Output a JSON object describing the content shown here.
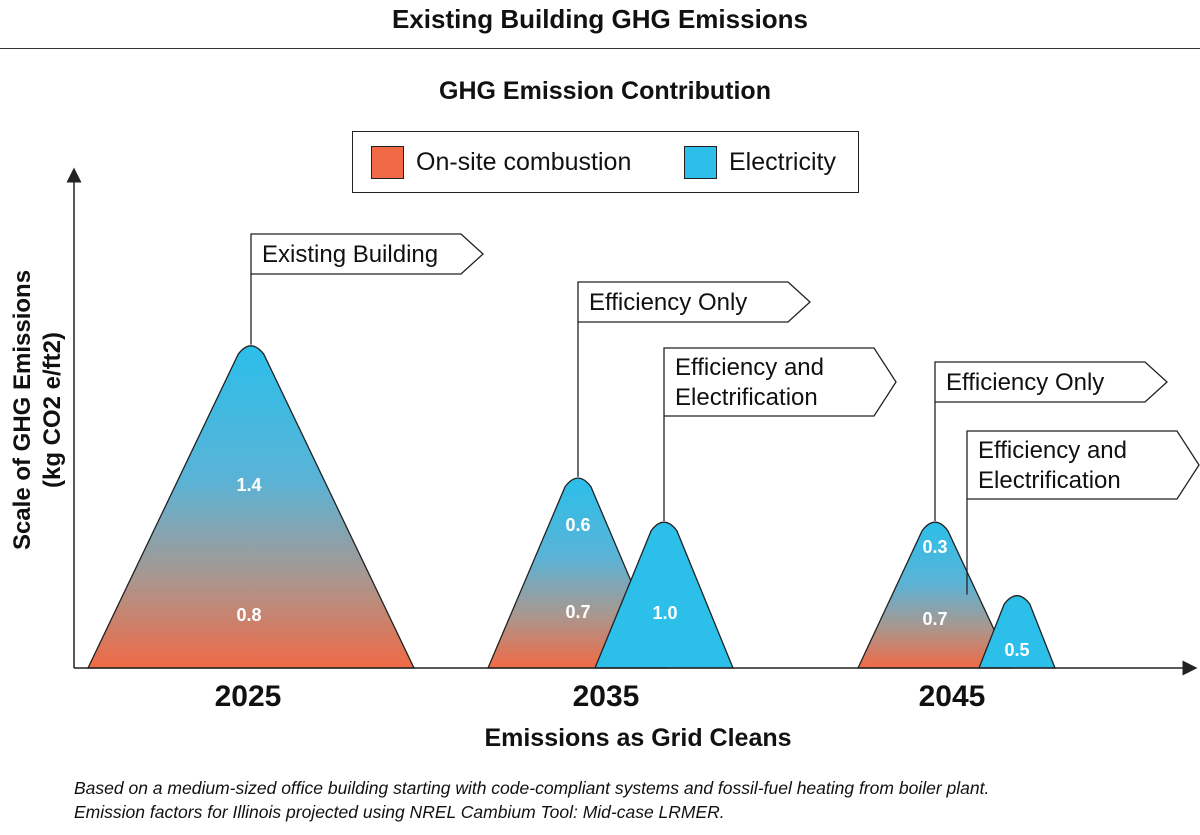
{
  "title": "Existing Building GHG Emissions",
  "chart_data": {
    "type": "area",
    "title": "GHG Emission Contribution",
    "xlabel": "Emissions as Grid Cleans",
    "ylabel_lines": [
      "Scale of GHG Emissions",
      "(kg CO2 e/ft2)"
    ],
    "legend": {
      "placement": "top-center",
      "items": [
        {
          "name": "On-site combustion",
          "color": "#F06A45"
        },
        {
          "name": "Electricity",
          "color": "#2BBFEA"
        }
      ]
    },
    "categories": [
      "2025",
      "2035",
      "2045"
    ],
    "scenarios": [
      {
        "year": "2025",
        "callout": [
          "Existing Building"
        ],
        "electricity": 1.4,
        "onsite_combustion": 0.8,
        "style": "gradient"
      },
      {
        "year": "2035",
        "callout": [
          "Efficiency Only"
        ],
        "electricity": 0.6,
        "onsite_combustion": 0.7,
        "style": "gradient"
      },
      {
        "year": "2035",
        "callout": [
          "Efficiency and",
          "Electrification"
        ],
        "electricity": 1.0,
        "style": "solid"
      },
      {
        "year": "2045",
        "callout": [
          "Efficiency Only"
        ],
        "electricity": 0.3,
        "onsite_combustion": 0.7,
        "style": "gradient"
      },
      {
        "year": "2045",
        "callout": [
          "Efficiency and",
          "Electrification"
        ],
        "electricity": 0.5,
        "style": "solid"
      }
    ]
  },
  "footnote": [
    "Based on a medium-sized office building starting with code-compliant systems and fossil-fuel heating from boiler plant.",
    "Emission factors for Illinois projected using NREL Cambium Tool: Mid-case LRMER."
  ]
}
